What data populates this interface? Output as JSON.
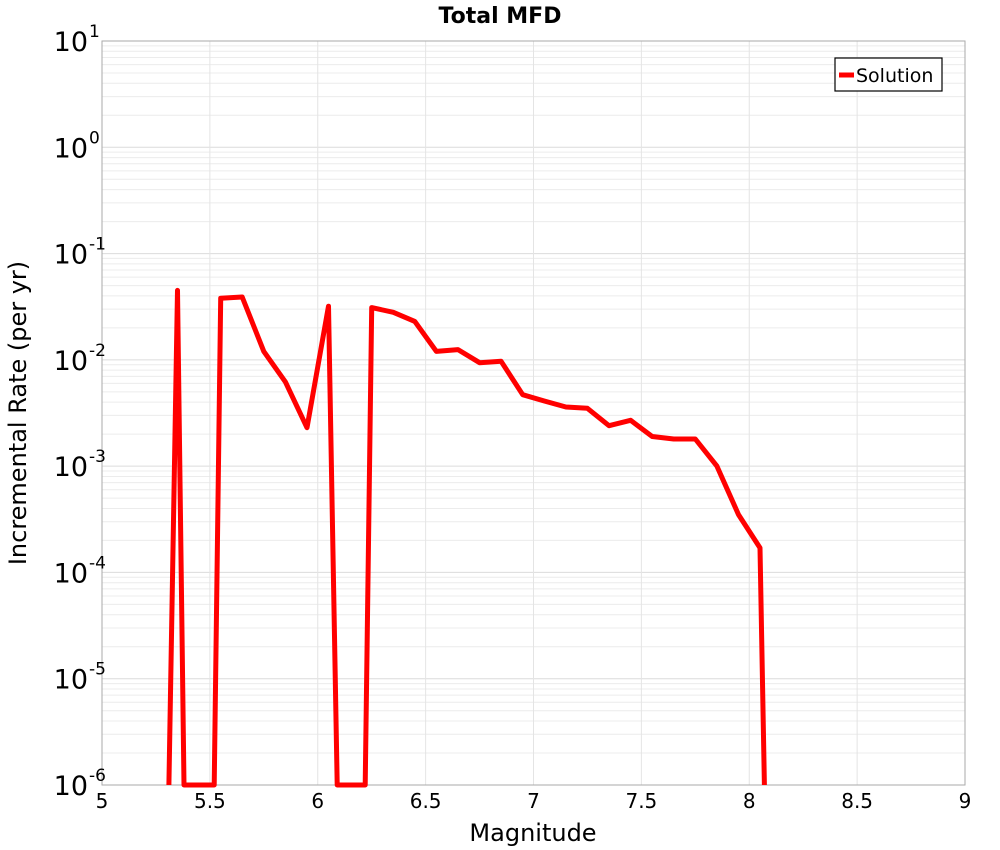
{
  "chart_data": {
    "type": "line",
    "title": "Total MFD",
    "xlabel": "Magnitude",
    "ylabel": "Incremental Rate (per yr)",
    "xlim": [
      5,
      9
    ],
    "ylim": [
      1e-06,
      10
    ],
    "yscale": "log",
    "grid": true,
    "legend_position": "top-right",
    "x_ticks": [
      "5",
      "5.5",
      "6",
      "6.5",
      "7",
      "7.5",
      "8",
      "8.5",
      "9"
    ],
    "y_ticks": [
      {
        "base": "10",
        "exp": "-6"
      },
      {
        "base": "10",
        "exp": "-5"
      },
      {
        "base": "10",
        "exp": "-4"
      },
      {
        "base": "10",
        "exp": "-3"
      },
      {
        "base": "10",
        "exp": "-2"
      },
      {
        "base": "10",
        "exp": "-1"
      },
      {
        "base": "10",
        "exp": "0"
      },
      {
        "base": "10",
        "exp": "1"
      }
    ],
    "series": [
      {
        "name": "Solution",
        "color": "#ff0000",
        "x": [
          5.31,
          5.35,
          5.38,
          5.52,
          5.55,
          5.65,
          5.75,
          5.85,
          5.95,
          6.05,
          6.09,
          6.22,
          6.25,
          6.35,
          6.45,
          6.55,
          6.65,
          6.75,
          6.85,
          6.95,
          7.05,
          7.15,
          7.25,
          7.35,
          7.45,
          7.55,
          7.65,
          7.75,
          7.85,
          7.95,
          8.05,
          8.07
        ],
        "y": [
          1e-06,
          0.045,
          1e-06,
          1e-06,
          0.038,
          0.039,
          0.012,
          0.0062,
          0.0023,
          0.032,
          1e-06,
          1e-06,
          0.031,
          0.028,
          0.023,
          0.012,
          0.0125,
          0.0094,
          0.0097,
          0.0047,
          0.0041,
          0.0036,
          0.0035,
          0.0024,
          0.0027,
          0.0019,
          0.0018,
          0.0018,
          0.001,
          0.00035,
          0.00017,
          1e-06
        ]
      }
    ]
  }
}
